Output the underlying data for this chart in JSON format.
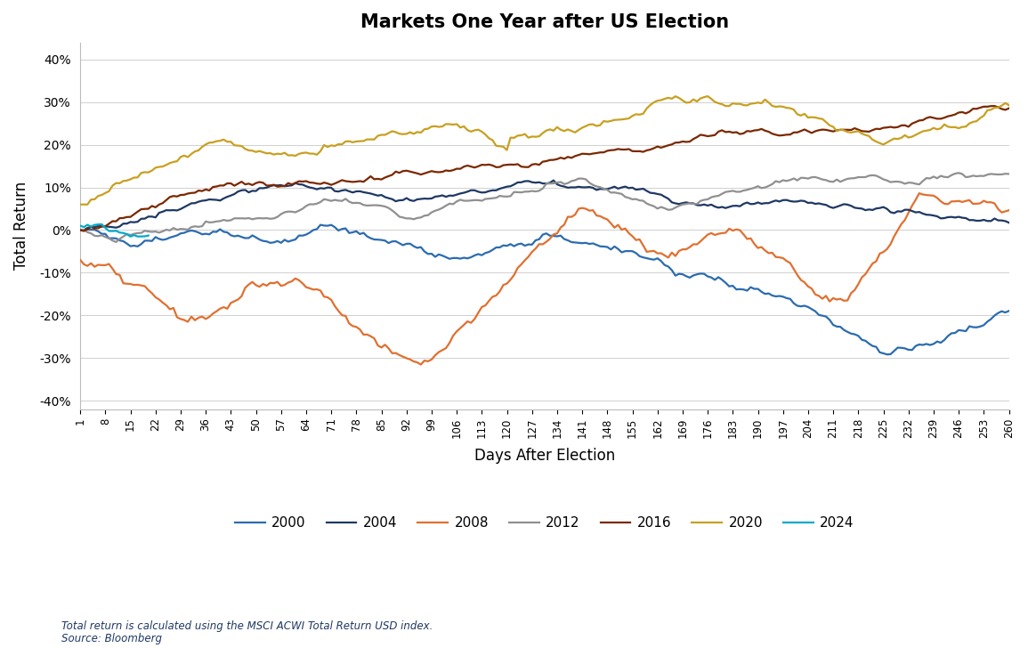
{
  "title": "Markets One Year after US Election",
  "xlabel": "Days After Election",
  "ylabel": "Total Return",
  "footnote1": "Total return is calculated using the MSCI ACWI Total Return USD index.",
  "footnote2": "Source: Bloomberg",
  "x_ticks": [
    1,
    8,
    15,
    22,
    29,
    36,
    43,
    50,
    57,
    64,
    71,
    78,
    85,
    92,
    99,
    106,
    113,
    120,
    127,
    134,
    141,
    148,
    155,
    162,
    169,
    176,
    183,
    190,
    197,
    204,
    211,
    218,
    225,
    232,
    239,
    246,
    253,
    260
  ],
  "ylim": [
    -0.42,
    0.44
  ],
  "yticks": [
    -0.4,
    -0.3,
    -0.2,
    -0.1,
    0.0,
    0.1,
    0.2,
    0.3,
    0.4
  ],
  "series": {
    "2000": {
      "color": "#2B6CB0",
      "lw": 1.6
    },
    "2004": {
      "color": "#1F3864",
      "lw": 1.6
    },
    "2008": {
      "color": "#E07030",
      "lw": 1.6
    },
    "2012": {
      "color": "#909090",
      "lw": 1.6
    },
    "2016": {
      "color": "#7B2800",
      "lw": 1.6
    },
    "2020": {
      "color": "#C8A020",
      "lw": 1.6
    },
    "2024": {
      "color": "#00AACC",
      "lw": 1.6
    }
  },
  "background_color": "#ffffff",
  "grid_color": "#d0d0d0"
}
